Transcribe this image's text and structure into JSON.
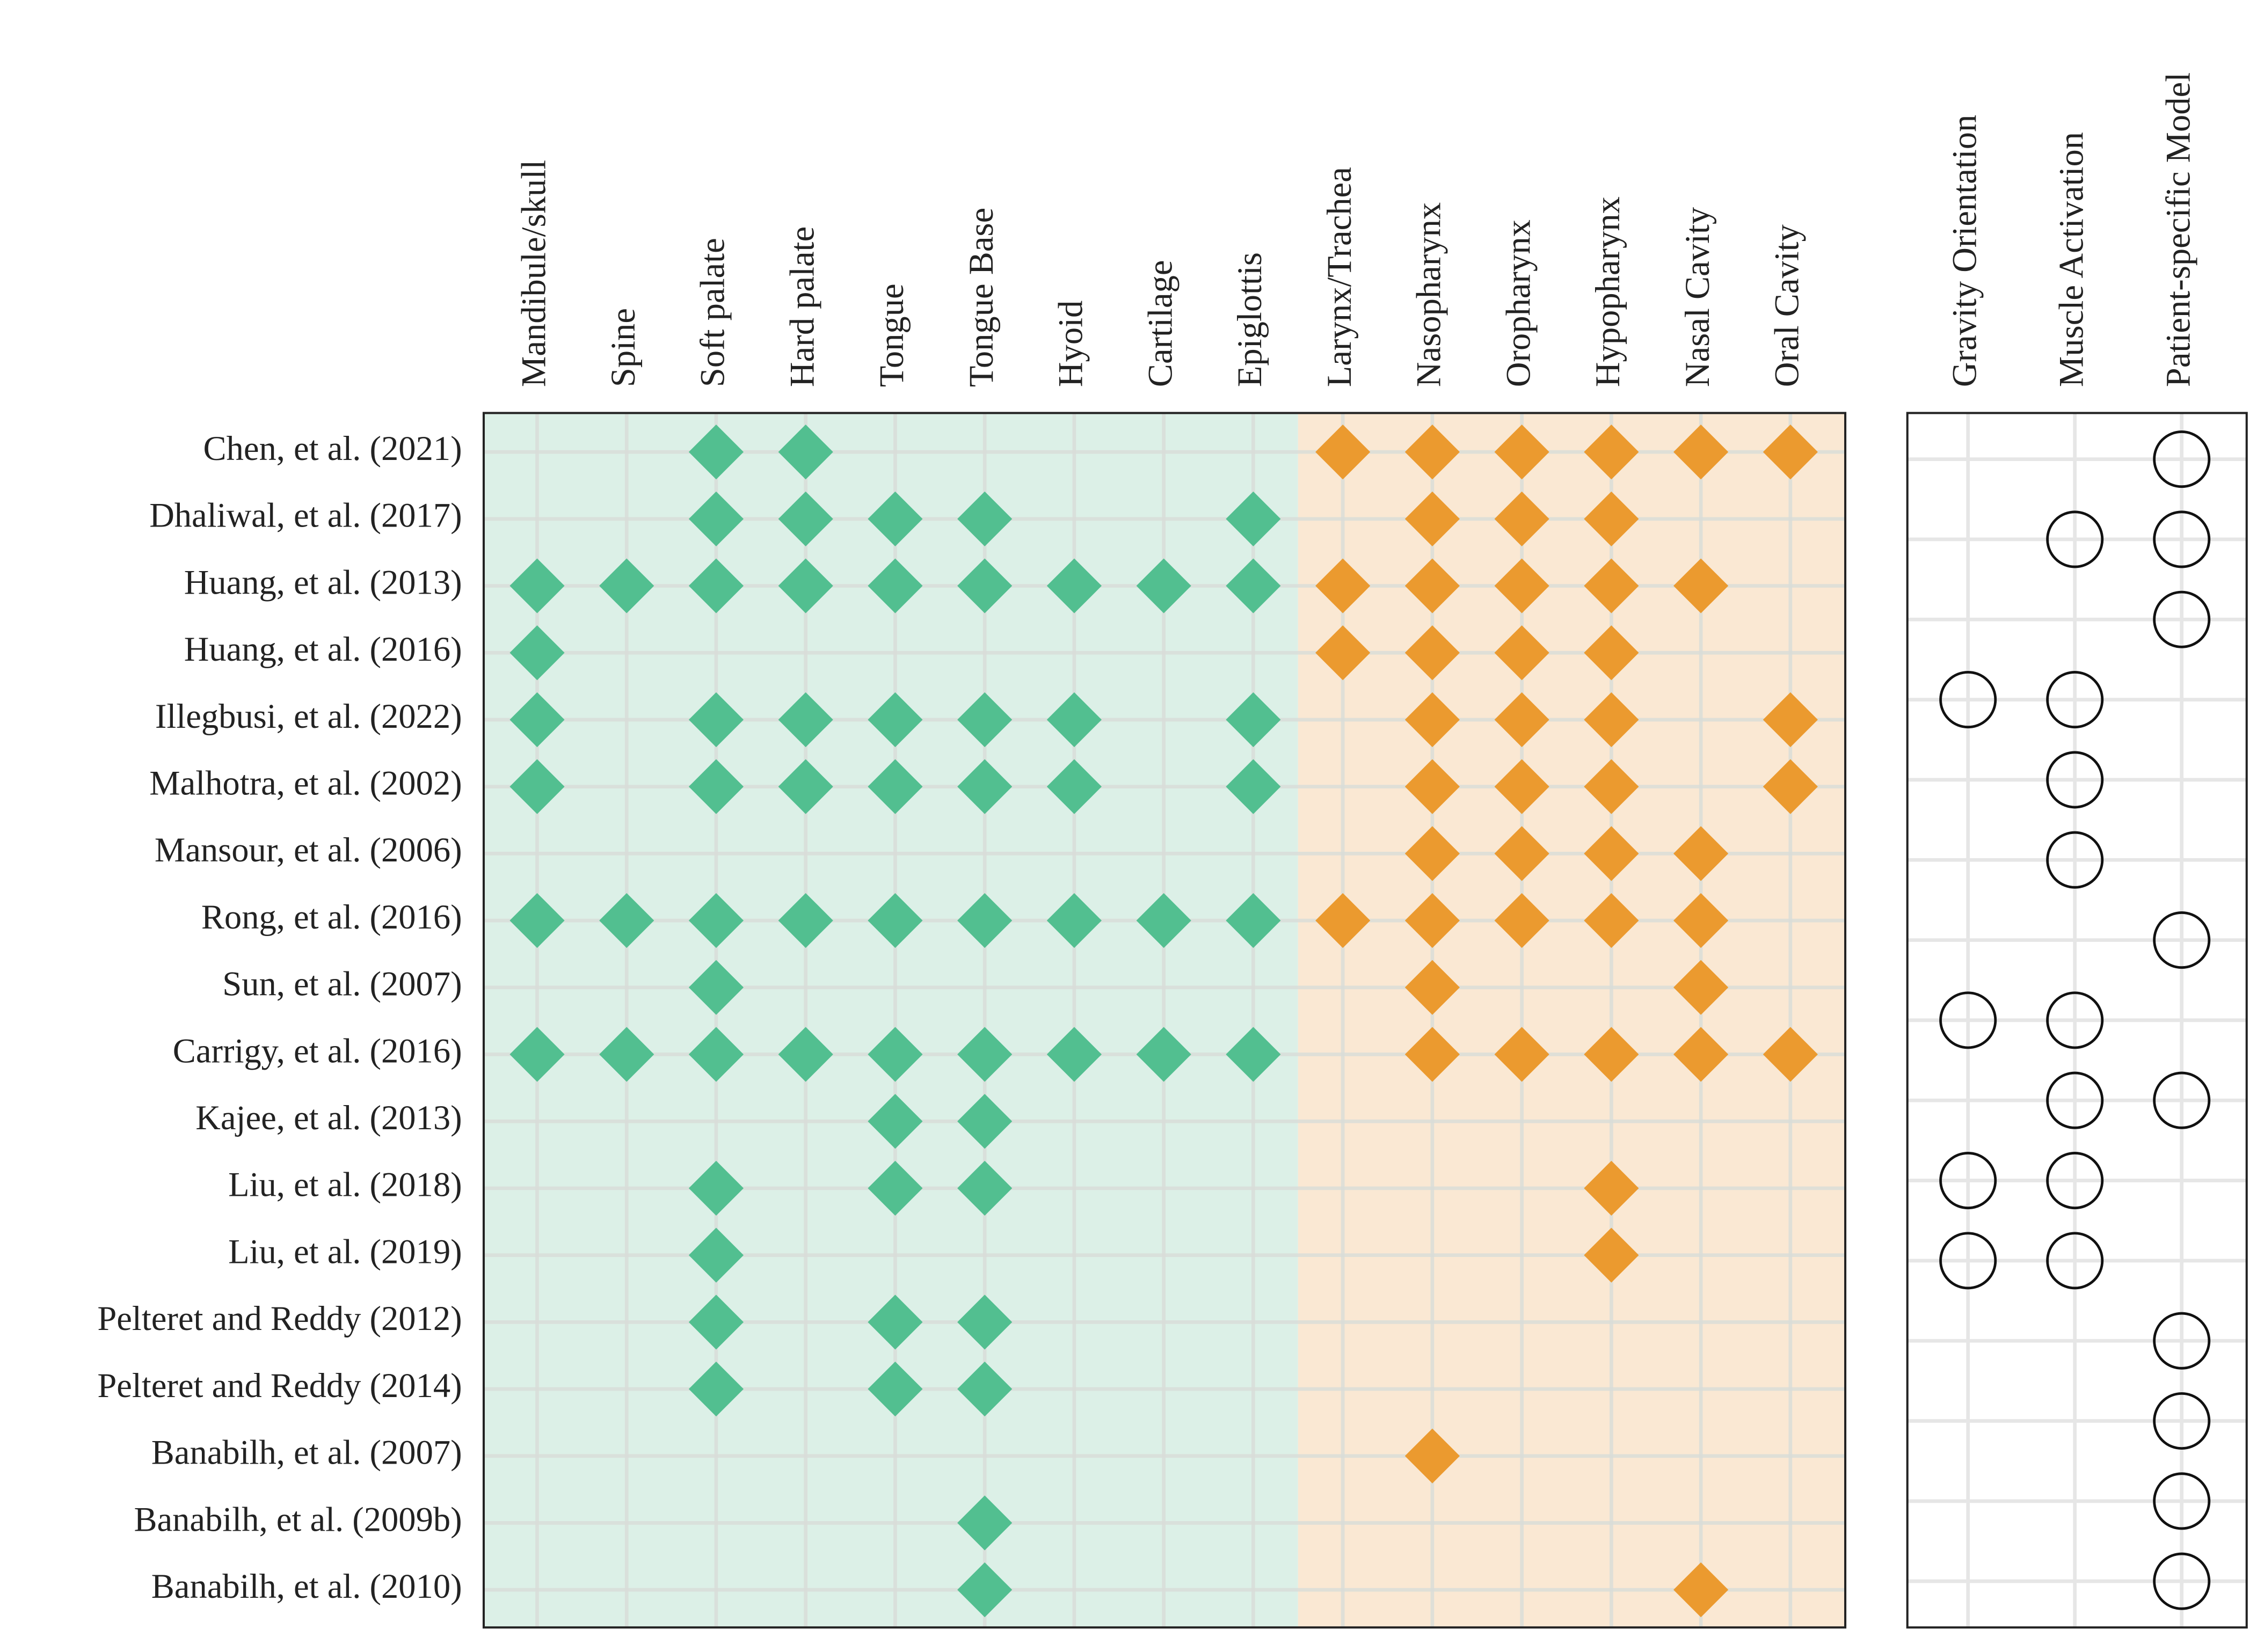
{
  "chart_data": {
    "type": "matrix",
    "rows": [
      "Chen, et al. (2021)",
      "Dhaliwal, et al. (2017)",
      "Huang, et al. (2013)",
      "Huang, et al. (2016)",
      "Illegbusi, et al. (2022)",
      "Malhotra, et al. (2002)",
      "Mansour, et al. (2006)",
      "Rong, et al. (2016)",
      "Sun, et al. (2007)",
      "Carrigy, et al. (2016)",
      "Kajee, et al. (2013)",
      "Liu, et al. (2018)",
      "Liu, et al. (2019)",
      "Pelteret and Reddy (2012)",
      "Pelteret and Reddy (2014)",
      "Banabilh, et al. (2007)",
      "Banabilh, et al. (2009b)",
      "Banabilh, et al. (2010)"
    ],
    "panels": [
      {
        "marker": "diamond",
        "groups": [
          {
            "color": "#52bf90",
            "background": "#dcf0e7",
            "columns": [
              "Mandibule/skull",
              "Spine",
              "Soft palate",
              "Hard palate",
              "Tongue",
              "Tongue Base",
              "Hyoid",
              "Cartilage",
              "Epiglottis"
            ]
          },
          {
            "color": "#eb9a2f",
            "background": "#fae8d3",
            "columns": [
              "Larynx/Trachea",
              "Nasopharynx",
              "Oropharynx",
              "Hypopharynx",
              "Nasal Cavity",
              "Oral Cavity"
            ]
          }
        ],
        "cells": [
          [
            0,
            0,
            1,
            1,
            0,
            0,
            0,
            0,
            0,
            1,
            1,
            1,
            1,
            1,
            1
          ],
          [
            0,
            0,
            1,
            1,
            1,
            1,
            0,
            0,
            1,
            0,
            1,
            1,
            1,
            0,
            0
          ],
          [
            1,
            1,
            1,
            1,
            1,
            1,
            1,
            1,
            1,
            1,
            1,
            1,
            1,
            1,
            0
          ],
          [
            1,
            0,
            0,
            0,
            0,
            0,
            0,
            0,
            0,
            1,
            1,
            1,
            1,
            0,
            0
          ],
          [
            1,
            0,
            1,
            1,
            1,
            1,
            1,
            0,
            1,
            0,
            1,
            1,
            1,
            0,
            1
          ],
          [
            1,
            0,
            1,
            1,
            1,
            1,
            1,
            0,
            1,
            0,
            1,
            1,
            1,
            0,
            1
          ],
          [
            0,
            0,
            0,
            0,
            0,
            0,
            0,
            0,
            0,
            0,
            1,
            1,
            1,
            1,
            0
          ],
          [
            1,
            1,
            1,
            1,
            1,
            1,
            1,
            1,
            1,
            1,
            1,
            1,
            1,
            1,
            0
          ],
          [
            0,
            0,
            1,
            0,
            0,
            0,
            0,
            0,
            0,
            0,
            1,
            0,
            0,
            1,
            0
          ],
          [
            1,
            1,
            1,
            1,
            1,
            1,
            1,
            1,
            1,
            0,
            1,
            1,
            1,
            1,
            1
          ],
          [
            0,
            0,
            0,
            0,
            1,
            1,
            0,
            0,
            0,
            0,
            0,
            0,
            0,
            0,
            0
          ],
          [
            0,
            0,
            1,
            0,
            1,
            1,
            0,
            0,
            0,
            0,
            0,
            0,
            1,
            0,
            0
          ],
          [
            0,
            0,
            1,
            0,
            0,
            0,
            0,
            0,
            0,
            0,
            0,
            0,
            1,
            0,
            0
          ],
          [
            0,
            0,
            1,
            0,
            1,
            1,
            0,
            0,
            0,
            0,
            0,
            0,
            0,
            0,
            0
          ],
          [
            0,
            0,
            1,
            0,
            1,
            1,
            0,
            0,
            0,
            0,
            0,
            0,
            0,
            0,
            0
          ],
          [
            0,
            0,
            0,
            0,
            0,
            0,
            0,
            0,
            0,
            0,
            1,
            0,
            0,
            0,
            0
          ],
          [
            0,
            0,
            0,
            0,
            0,
            1,
            0,
            0,
            0,
            0,
            0,
            0,
            0,
            0,
            0
          ],
          [
            0,
            0,
            0,
            0,
            0,
            1,
            0,
            0,
            0,
            0,
            0,
            0,
            0,
            1,
            0
          ]
        ]
      },
      {
        "marker": "circle",
        "columns": [
          "Gravity Orientation",
          "Muscle Activation",
          "Patient-specific Model"
        ],
        "cells": [
          [
            0,
            0,
            1
          ],
          [
            0,
            1,
            1
          ],
          [
            0,
            0,
            1
          ],
          [
            1,
            1,
            0
          ],
          [
            0,
            1,
            0
          ],
          [
            0,
            1,
            0
          ],
          [
            0,
            0,
            1
          ],
          [
            1,
            1,
            0
          ],
          [
            0,
            1,
            1
          ],
          [
            1,
            1,
            0
          ],
          [
            1,
            1,
            0
          ],
          [
            0,
            0,
            1
          ],
          [
            0,
            0,
            1
          ],
          [
            0,
            0,
            1
          ],
          [
            0,
            0,
            1
          ]
        ]
      }
    ]
  }
}
